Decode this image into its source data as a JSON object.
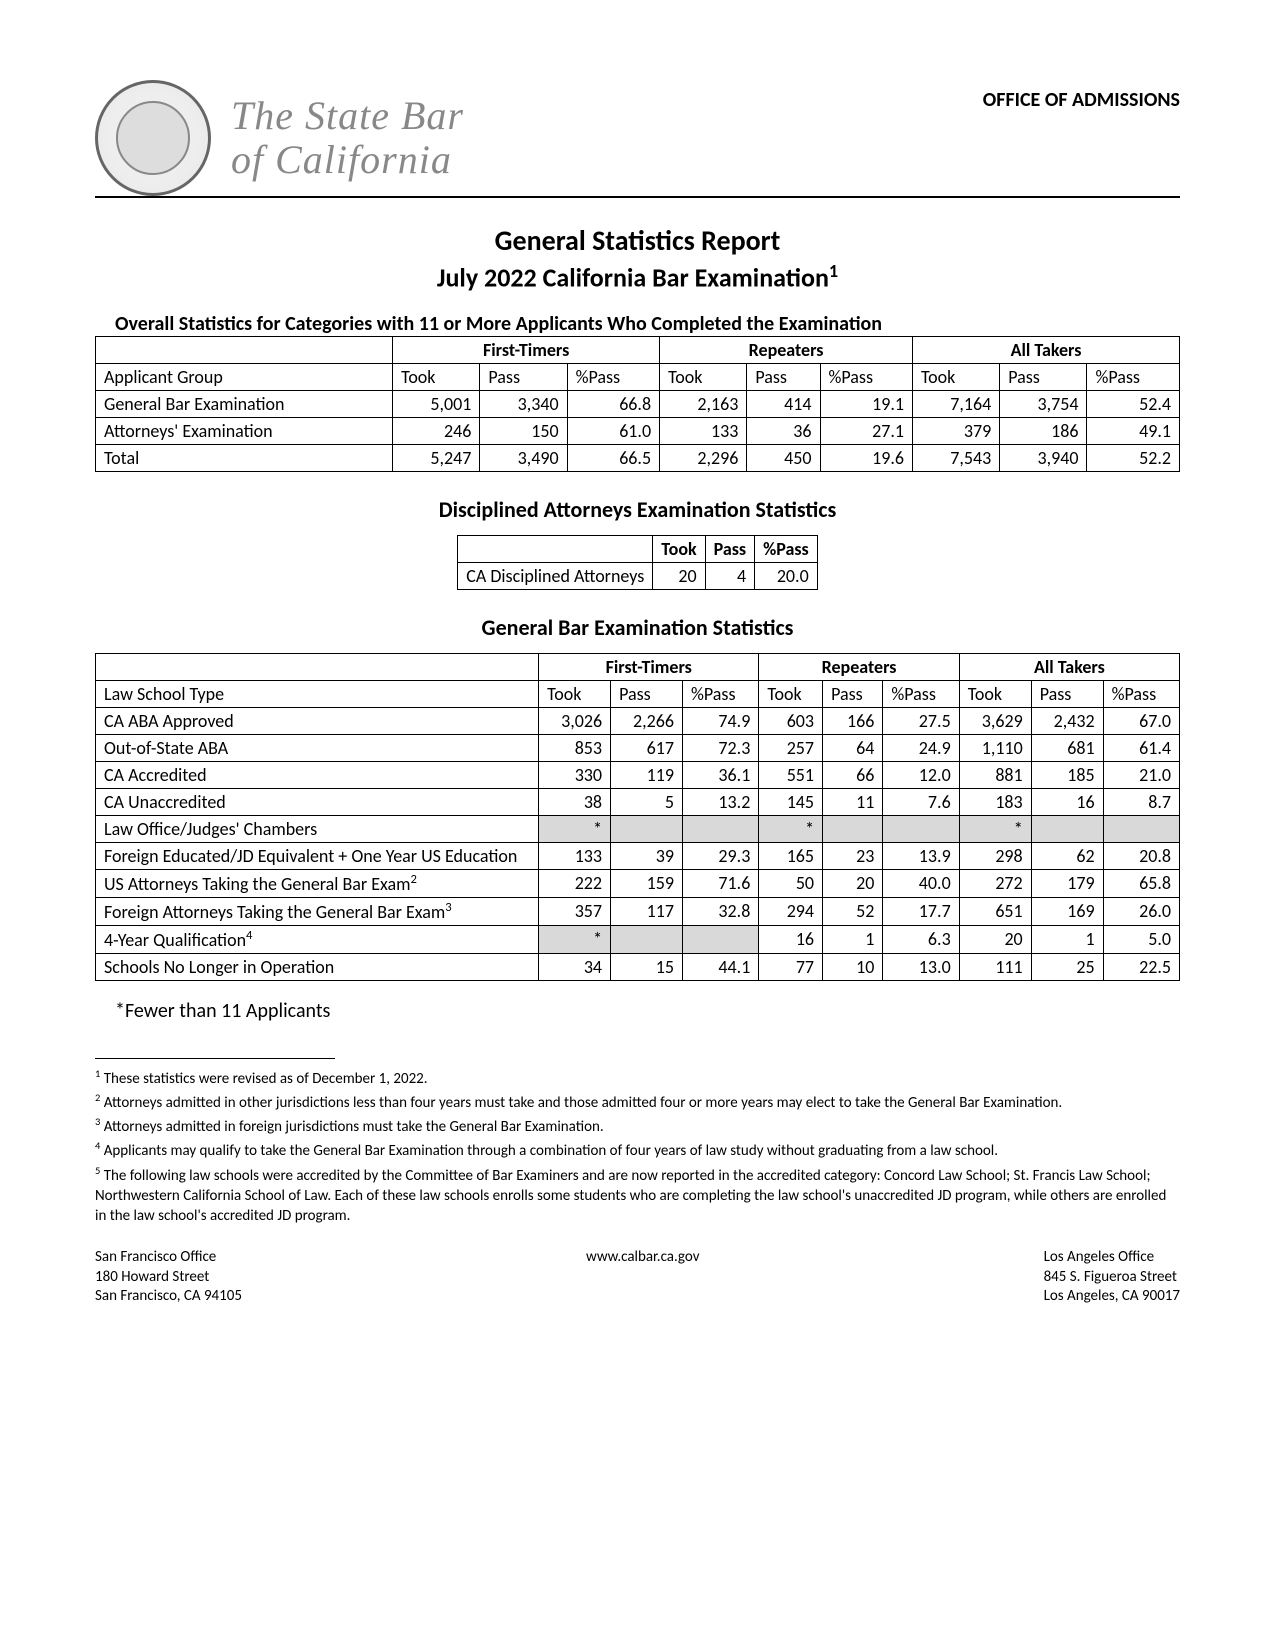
{
  "header": {
    "org_line1": "The State Bar",
    "org_line2": "of California",
    "office": "OFFICE OF ADMISSIONS"
  },
  "titles": {
    "main": "General Statistics Report",
    "sub": "July 2022 California Bar Examination",
    "sup": "1",
    "desc": "Overall Statistics for Categories with 11 or More Applicants Who Completed the Examination"
  },
  "overall": {
    "group_labels": [
      "First-Timers",
      "Repeaters",
      "All Takers"
    ],
    "cols": [
      "Took",
      "Pass",
      "%Pass",
      "Took",
      "Pass",
      "%Pass",
      "Took",
      "Pass",
      "%Pass"
    ],
    "row_header": "Applicant Group",
    "rows": [
      {
        "label": "General Bar Examination",
        "vals": [
          "5,001",
          "3,340",
          "66.8",
          "2,163",
          "414",
          "19.1",
          "7,164",
          "3,754",
          "52.4"
        ]
      },
      {
        "label": "Attorneys' Examination",
        "vals": [
          "246",
          "150",
          "61.0",
          "133",
          "36",
          "27.1",
          "379",
          "186",
          "49.1"
        ]
      },
      {
        "label": "Total",
        "vals": [
          "5,247",
          "3,490",
          "66.5",
          "2,296",
          "450",
          "19.6",
          "7,543",
          "3,940",
          "52.2"
        ]
      }
    ]
  },
  "disciplined": {
    "title": "Disciplined Attorneys Examination Statistics",
    "cols": [
      "Took",
      "Pass",
      "%Pass"
    ],
    "row": {
      "label": "CA Disciplined Attorneys",
      "vals": [
        "20",
        "4",
        "20.0"
      ]
    }
  },
  "general": {
    "title": "General Bar Examination Statistics",
    "group_labels": [
      "First-Timers",
      "Repeaters",
      "All Takers"
    ],
    "cols": [
      "Took",
      "Pass",
      "%Pass",
      "Took",
      "Pass",
      "%Pass",
      "Took",
      "Pass",
      "%Pass"
    ],
    "row_header": "Law School Type",
    "rows": [
      {
        "label": "CA ABA Approved",
        "vals": [
          "3,026",
          "2,266",
          "74.9",
          "603",
          "166",
          "27.5",
          "3,629",
          "2,432",
          "67.0"
        ],
        "shaded": false
      },
      {
        "label": "Out-of-State ABA",
        "vals": [
          "853",
          "617",
          "72.3",
          "257",
          "64",
          "24.9",
          "1,110",
          "681",
          "61.4"
        ],
        "shaded": false
      },
      {
        "label": "CA Accredited",
        "vals": [
          "330",
          "119",
          "36.1",
          "551",
          "66",
          "12.0",
          "881",
          "185",
          "21.0"
        ],
        "shaded": false
      },
      {
        "label": "CA Unaccredited",
        "vals": [
          "38",
          "5",
          "13.2",
          "145",
          "11",
          "7.6",
          "183",
          "16",
          "8.7"
        ],
        "shaded": false
      },
      {
        "label": "Law Office/Judges' Chambers",
        "vals": [
          "*",
          "",
          "",
          "*",
          "",
          "",
          "*",
          "",
          ""
        ],
        "shaded": true
      },
      {
        "label": "Foreign Educated/JD Equivalent + One Year US Education",
        "vals": [
          "133",
          "39",
          "29.3",
          "165",
          "23",
          "13.9",
          "298",
          "62",
          "20.8"
        ],
        "shaded": false
      },
      {
        "label": "US Attorneys Taking the General Bar Exam",
        "sup": "2",
        "vals": [
          "222",
          "159",
          "71.6",
          "50",
          "20",
          "40.0",
          "272",
          "179",
          "65.8"
        ],
        "shaded": false
      },
      {
        "label": "Foreign Attorneys Taking the General Bar Exam",
        "sup": "3",
        "vals": [
          "357",
          "117",
          "32.8",
          "294",
          "52",
          "17.7",
          "651",
          "169",
          "26.0"
        ],
        "shaded": false
      },
      {
        "label": "4-Year Qualification",
        "sup": "4",
        "vals": [
          "*",
          "",
          "",
          "16",
          "1",
          "6.3",
          "20",
          "1",
          "5.0"
        ],
        "shaded_first3": true
      },
      {
        "label": "Schools No Longer in Operation",
        "vals": [
          "34",
          "15",
          "44.1",
          "77",
          "10",
          "13.0",
          "111",
          "25",
          "22.5"
        ],
        "shaded": false
      }
    ]
  },
  "asterisk_note": "*Fewer than 11 Applicants",
  "footnotes": [
    {
      "num": "1",
      "text": "These statistics were revised as of December 1, 2022."
    },
    {
      "num": "2",
      "text": "Attorneys admitted in other jurisdictions less than four years must take and those admitted four or more years may elect to take the General Bar Examination."
    },
    {
      "num": "3",
      "text": "Attorneys admitted in foreign jurisdictions must take the General Bar Examination."
    },
    {
      "num": "4",
      "text": "Applicants may qualify to take the General Bar Examination through a combination of four years of law study without graduating from a law school."
    },
    {
      "num": "5",
      "text": "The following law schools were accredited by the Committee of Bar Examiners and are now reported in the accredited category: Concord Law School; St. Francis Law School; Northwestern California School of Law. Each of these law schools enrolls some students who are completing the law school's unaccredited JD program, while others are enrolled in the law school's accredited JD program."
    }
  ],
  "footer": {
    "left": [
      "San Francisco Office",
      "180 Howard Street",
      "San Francisco, CA 94105"
    ],
    "center": "www.calbar.ca.gov",
    "right": [
      "Los Angeles Office",
      "845 S. Figueroa Street",
      "Los Angeles, CA 90017"
    ]
  }
}
